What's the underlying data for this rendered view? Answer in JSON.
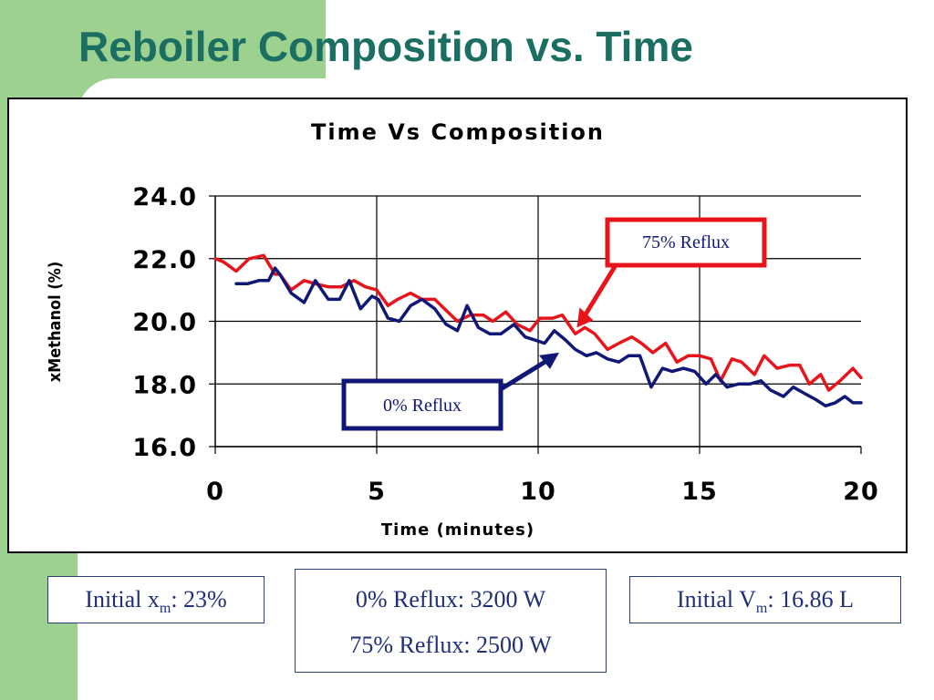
{
  "slide": {
    "title": "Reboiler Composition vs. Time"
  },
  "info": {
    "xm_prefix": "Initial x",
    "xm_sub": "m",
    "xm_value": ": 23%",
    "power_0": "0% Reflux: 3200 W",
    "power_75": "75% Reflux: 2500 W",
    "vm_prefix": "Initial V",
    "vm_sub": "m",
    "vm_value": ": 16.86 L"
  },
  "chart_data": {
    "type": "line",
    "title": "Time Vs Composition",
    "xlabel": "Time (minutes)",
    "ylabel": "xMethanol (%)",
    "xlim": [
      0,
      20
    ],
    "ylim": [
      16.0,
      24.0
    ],
    "x_ticks": [
      0,
      5,
      10,
      15,
      20
    ],
    "y_ticks": [
      16.0,
      18.0,
      20.0,
      22.0,
      24.0
    ],
    "x_tick_labels": [
      "0",
      "5",
      "10",
      "15",
      "20"
    ],
    "y_tick_labels": [
      "16.0",
      "18.0",
      "20.0",
      "22.0",
      "24.0"
    ],
    "grid": true,
    "series": [
      {
        "name": "75% Reflux",
        "color": "#e8141b",
        "x": [
          0,
          0.25,
          0.65,
          1.05,
          1.5,
          1.85,
          2.0,
          2.35,
          2.75,
          3.1,
          3.5,
          3.9,
          4.3,
          4.65,
          5.0,
          5.35,
          5.65,
          6.05,
          6.4,
          6.8,
          7.1,
          7.5,
          7.9,
          8.3,
          8.6,
          9.0,
          9.35,
          9.75,
          10.05,
          10.45,
          10.75,
          11.15,
          11.45,
          11.75,
          12.15,
          12.5,
          12.9,
          13.2,
          13.55,
          13.95,
          14.3,
          14.65,
          15.0,
          15.35,
          15.65,
          16.0,
          16.3,
          16.7,
          17.0,
          17.4,
          17.8,
          18.1,
          18.4,
          18.75,
          19.0,
          19.35,
          19.75,
          20.0
        ],
        "y": [
          22.0,
          21.9,
          21.6,
          22.0,
          22.1,
          21.5,
          21.5,
          21.0,
          21.3,
          21.2,
          21.1,
          21.1,
          21.3,
          21.1,
          21.0,
          20.5,
          20.7,
          20.9,
          20.7,
          20.7,
          20.4,
          20.0,
          20.2,
          20.2,
          20.0,
          20.3,
          19.9,
          19.7,
          20.1,
          20.1,
          20.2,
          19.6,
          19.8,
          19.6,
          19.1,
          19.3,
          19.5,
          19.3,
          19.0,
          19.3,
          18.7,
          18.9,
          18.9,
          18.8,
          18.1,
          18.8,
          18.7,
          18.3,
          18.9,
          18.5,
          18.6,
          18.6,
          18.0,
          18.3,
          17.8,
          18.1,
          18.5,
          18.2
        ]
      },
      {
        "name": "0% Reflux",
        "color": "#101877",
        "x": [
          0.65,
          1.0,
          1.35,
          1.65,
          1.85,
          2.0,
          2.35,
          2.75,
          3.1,
          3.5,
          3.85,
          4.15,
          4.5,
          4.85,
          5.05,
          5.35,
          5.7,
          6.05,
          6.4,
          6.8,
          7.15,
          7.5,
          7.8,
          8.15,
          8.5,
          8.85,
          9.25,
          9.6,
          9.9,
          10.2,
          10.5,
          10.85,
          11.15,
          11.5,
          11.8,
          12.15,
          12.5,
          12.8,
          13.15,
          13.5,
          13.85,
          14.15,
          14.5,
          14.85,
          15.2,
          15.5,
          15.85,
          16.2,
          16.55,
          16.9,
          17.2,
          17.6,
          17.9,
          18.25,
          18.6,
          18.9,
          19.2,
          19.5,
          19.75,
          20.0
        ],
        "y": [
          21.2,
          21.2,
          21.3,
          21.3,
          21.7,
          21.5,
          20.9,
          20.6,
          21.3,
          20.7,
          20.7,
          21.3,
          20.4,
          20.8,
          20.7,
          20.1,
          20.0,
          20.5,
          20.7,
          20.4,
          19.9,
          19.7,
          20.5,
          19.8,
          19.6,
          19.6,
          19.9,
          19.5,
          19.4,
          19.3,
          19.7,
          19.4,
          19.1,
          18.9,
          19.0,
          18.8,
          18.7,
          18.9,
          18.9,
          17.9,
          18.5,
          18.4,
          18.5,
          18.4,
          18.0,
          18.3,
          17.9,
          18.0,
          18.0,
          18.1,
          17.8,
          17.6,
          17.9,
          17.7,
          17.5,
          17.3,
          17.4,
          17.6,
          17.4,
          17.4
        ]
      }
    ],
    "annotations": [
      {
        "text": "75% Reflux",
        "color": "#e8141b",
        "points_to": [
          11.2,
          19.8
        ]
      },
      {
        "text": "0% Reflux",
        "color": "#101877",
        "points_to": [
          10.65,
          19.0
        ]
      }
    ]
  }
}
